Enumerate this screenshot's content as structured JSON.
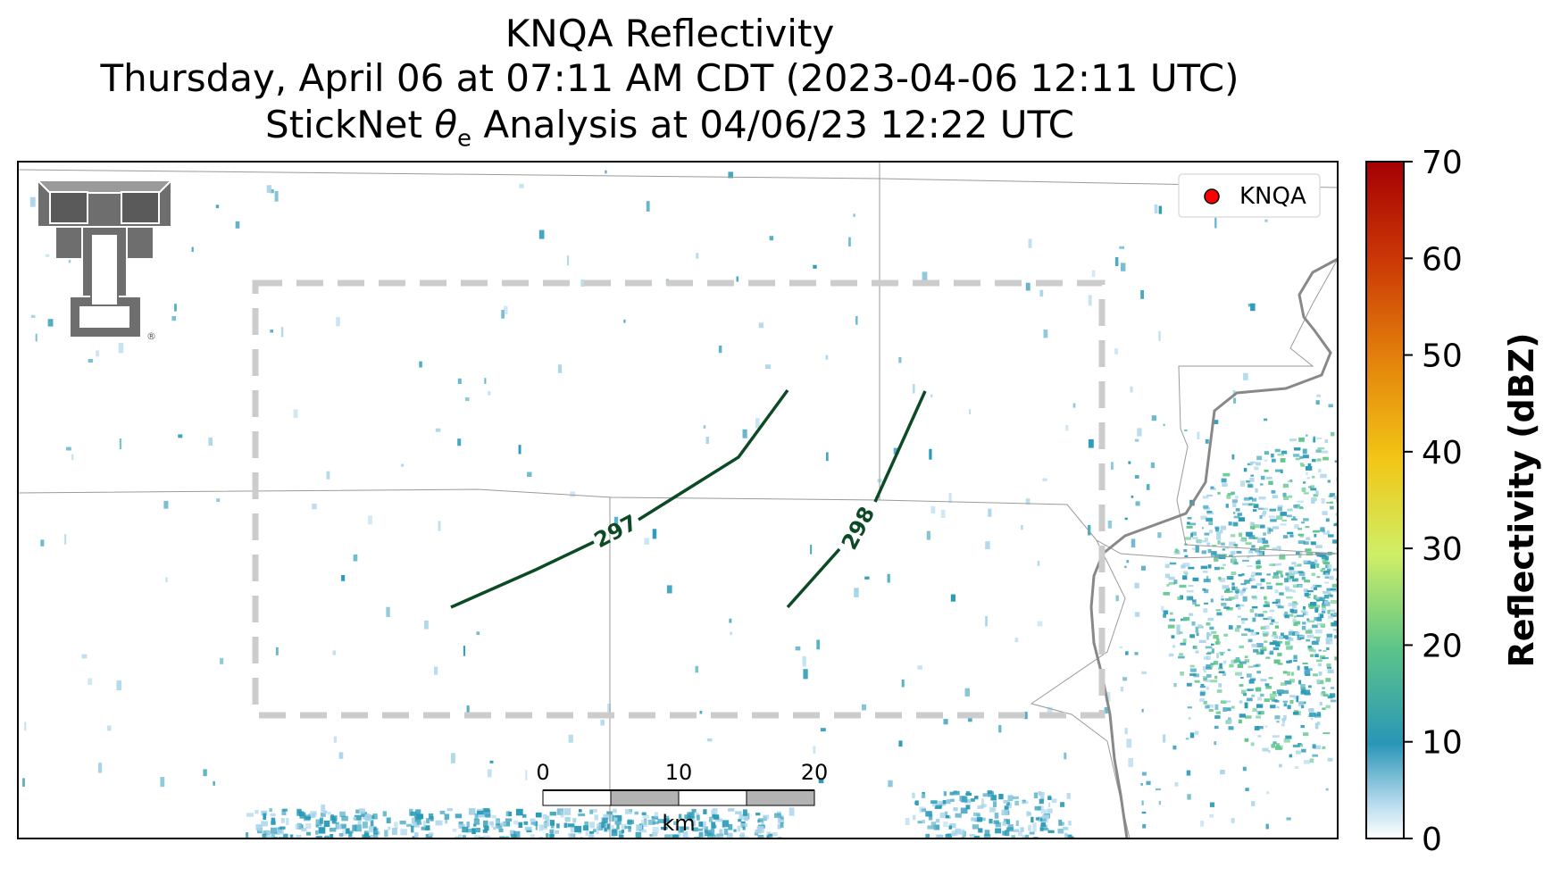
{
  "title": {
    "line1": "KNQA Reflectivity",
    "line2": "Thursday, April 06 at 07:11 AM CDT (2023-04-06 12:11 UTC)",
    "line3_prefix": "StickNet ",
    "line3_theta": "θ",
    "line3_sub": "e",
    "line3_suffix": " Analysis at 04/06/23 12:22 UTC"
  },
  "legend": {
    "label": "KNQA",
    "marker_color": "#ff0000"
  },
  "colorbar": {
    "label": "Reflectivity (dBZ)",
    "min": 0,
    "max": 70,
    "ticks": [
      "0",
      "10",
      "20",
      "30",
      "40",
      "50",
      "60",
      "70"
    ]
  },
  "contours": [
    {
      "label": "297",
      "color": "#0b4a24"
    },
    {
      "label": "298",
      "color": "#0b4a24"
    }
  ],
  "scale_bar": {
    "labels": [
      "0",
      "10",
      "20"
    ],
    "unit": "km"
  },
  "logo": {
    "name": "texas-tech-double-t-logo",
    "registered": "®"
  },
  "colors": {
    "analysis_box": "#cccccc",
    "boundary": "#9a9a9a",
    "river": "#888888",
    "echo_low": "#a8d4ea",
    "echo_mid": "#2a9ab8",
    "echo_high": "#5fc68a"
  }
}
